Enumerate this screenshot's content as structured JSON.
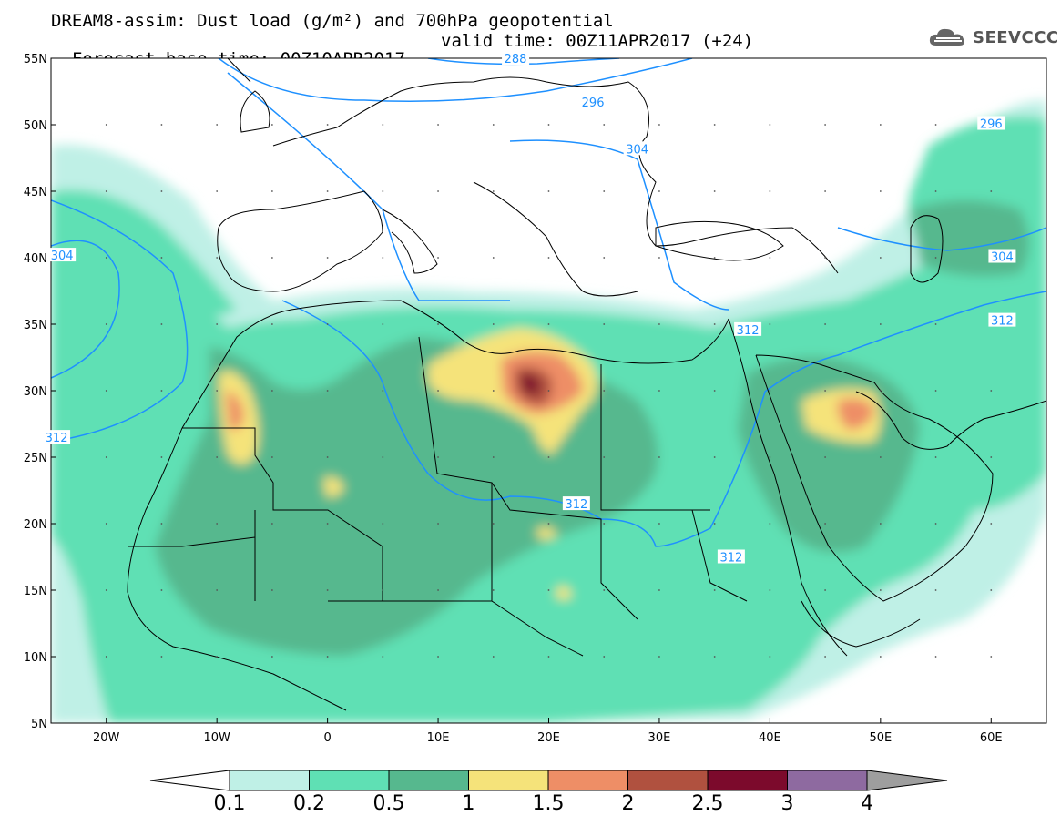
{
  "title": {
    "line1": "DREAM8-assim: Dust load (g/m²) and 700hPa geopotential",
    "line2_base": "Forecast base time: 00Z10APR2017",
    "line2_valid": "valid time: 00Z11APR2017 (+24)"
  },
  "logo": {
    "icon": "cloud-icon",
    "text": "SEEVCCC"
  },
  "axes": {
    "lon_range": [
      -25,
      65
    ],
    "lat_range": [
      5,
      55
    ],
    "x_ticks": [
      "20W",
      "10W",
      "0",
      "10E",
      "20E",
      "30E",
      "40E",
      "50E",
      "60E"
    ],
    "x_tick_values": [
      -20,
      -10,
      0,
      10,
      20,
      30,
      40,
      50,
      60
    ],
    "y_ticks": [
      "55N",
      "50N",
      "45N",
      "40N",
      "35N",
      "30N",
      "25N",
      "20N",
      "15N",
      "10N",
      "5N"
    ],
    "y_tick_values": [
      55,
      50,
      45,
      40,
      35,
      30,
      25,
      20,
      15,
      10,
      5
    ]
  },
  "contours": {
    "color": "#1e90ff",
    "labels": [
      {
        "text": "288",
        "lon": 17,
        "lat": 55
      },
      {
        "text": "296",
        "lon": 24,
        "lat": 51.7
      },
      {
        "text": "304",
        "lon": 28,
        "lat": 48.2
      },
      {
        "text": "304",
        "lon": -24,
        "lat": 40.2
      },
      {
        "text": "304",
        "lon": 61,
        "lat": 40.1
      },
      {
        "text": "296",
        "lon": 60,
        "lat": 50.1
      },
      {
        "text": "312",
        "lon": 38,
        "lat": 34.6
      },
      {
        "text": "312",
        "lon": 61,
        "lat": 35.3
      },
      {
        "text": "312",
        "lon": -24.5,
        "lat": 26.5
      },
      {
        "text": "312",
        "lon": 22.5,
        "lat": 21.5
      },
      {
        "text": "312",
        "lon": 36.5,
        "lat": 17.5
      }
    ]
  },
  "colorbar": {
    "levels": [
      "0.1",
      "0.2",
      "0.5",
      "1",
      "1.5",
      "2",
      "2.5",
      "3",
      "4"
    ],
    "colors": [
      "#ffffff",
      "#bff0e6",
      "#5fe0b4",
      "#56b88e",
      "#f5e37a",
      "#ee8e66",
      "#b0513f",
      "#7c0a2c",
      "#8e6aa0",
      "#9e9e9e"
    ]
  }
}
